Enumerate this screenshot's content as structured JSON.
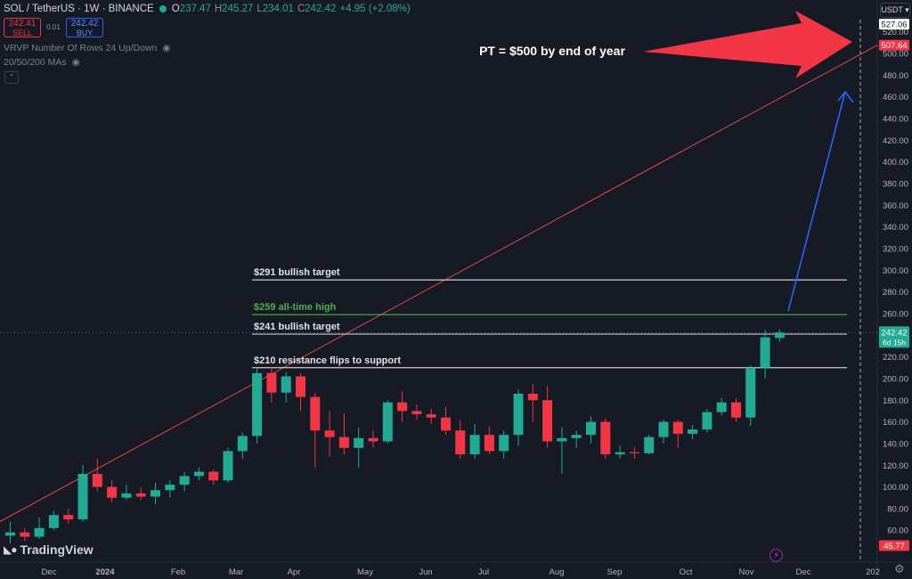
{
  "header": {
    "symbol": "SOL / TetherUS · 1W · BINANCE",
    "o_label": "O",
    "o": "237.47",
    "h_label": "H",
    "h": "245.27",
    "l_label": "L",
    "l": "234.01",
    "c_label": "C",
    "c": "242.42",
    "change": "+4.95 (+2.08%)"
  },
  "trade": {
    "sell_price": "242.41",
    "sell_label": "SELL",
    "spread": "0.01",
    "buy_price": "242.42",
    "buy_label": "BUY"
  },
  "indicators": [
    {
      "label": "VRVP Number Of Rows 24 Up/Down"
    },
    {
      "label": "20/50/200 MAs"
    }
  ],
  "quote_currency": "USDT",
  "branding": "TradingView",
  "colors": {
    "background": "#161a25",
    "up": "#22ab94",
    "down": "#f23645",
    "trendline": "#e64545",
    "green_level": "#4caf50",
    "white_level": "#c8cacf",
    "projection_arrow": "#2962ff",
    "annotation_arrow": "#f23645"
  },
  "chart_data": {
    "type": "candlestick",
    "interval": "1W",
    "ylim": [
      40,
      530
    ],
    "y_ticks": [
      60,
      80,
      100,
      120,
      140,
      160,
      180,
      200,
      220,
      240,
      260,
      280,
      300,
      320,
      340,
      360,
      380,
      400,
      420,
      440,
      460,
      480,
      500,
      520
    ],
    "x_ticks": [
      "Dec",
      "2024",
      "Feb",
      "Mar",
      "Apr",
      "May",
      "Jun",
      "Jul",
      "Aug",
      "Sep",
      "Oct",
      "Nov",
      "Dec",
      "202"
    ],
    "price_labels": {
      "top": "527.06",
      "trend": "507.64",
      "last": "242.42",
      "countdown": "6d 15h",
      "bottom": "45.77"
    },
    "candles": [
      {
        "o": 55,
        "h": 68,
        "l": 48,
        "c": 58
      },
      {
        "o": 58,
        "h": 62,
        "l": 50,
        "c": 54
      },
      {
        "o": 54,
        "h": 72,
        "l": 52,
        "c": 62
      },
      {
        "o": 62,
        "h": 78,
        "l": 60,
        "c": 74
      },
      {
        "o": 74,
        "h": 80,
        "l": 66,
        "c": 70
      },
      {
        "o": 70,
        "h": 120,
        "l": 68,
        "c": 112
      },
      {
        "o": 112,
        "h": 126,
        "l": 96,
        "c": 100
      },
      {
        "o": 100,
        "h": 106,
        "l": 86,
        "c": 90
      },
      {
        "o": 90,
        "h": 102,
        "l": 88,
        "c": 94
      },
      {
        "o": 94,
        "h": 100,
        "l": 88,
        "c": 91
      },
      {
        "o": 91,
        "h": 104,
        "l": 84,
        "c": 97
      },
      {
        "o": 97,
        "h": 106,
        "l": 90,
        "c": 102
      },
      {
        "o": 102,
        "h": 114,
        "l": 96,
        "c": 110
      },
      {
        "o": 110,
        "h": 118,
        "l": 106,
        "c": 114
      },
      {
        "o": 114,
        "h": 116,
        "l": 102,
        "c": 106
      },
      {
        "o": 106,
        "h": 136,
        "l": 104,
        "c": 133
      },
      {
        "o": 133,
        "h": 150,
        "l": 126,
        "c": 147
      },
      {
        "o": 147,
        "h": 210,
        "l": 140,
        "c": 205
      },
      {
        "o": 205,
        "h": 210,
        "l": 178,
        "c": 187
      },
      {
        "o": 187,
        "h": 206,
        "l": 178,
        "c": 202
      },
      {
        "o": 202,
        "h": 205,
        "l": 170,
        "c": 183
      },
      {
        "o": 183,
        "h": 187,
        "l": 118,
        "c": 152
      },
      {
        "o": 152,
        "h": 170,
        "l": 128,
        "c": 146
      },
      {
        "o": 146,
        "h": 168,
        "l": 130,
        "c": 136
      },
      {
        "o": 136,
        "h": 155,
        "l": 118,
        "c": 145
      },
      {
        "o": 145,
        "h": 152,
        "l": 136,
        "c": 142
      },
      {
        "o": 142,
        "h": 180,
        "l": 140,
        "c": 178
      },
      {
        "o": 178,
        "h": 188,
        "l": 160,
        "c": 170
      },
      {
        "o": 170,
        "h": 176,
        "l": 162,
        "c": 167
      },
      {
        "o": 167,
        "h": 172,
        "l": 158,
        "c": 164
      },
      {
        "o": 164,
        "h": 174,
        "l": 148,
        "c": 152
      },
      {
        "o": 152,
        "h": 162,
        "l": 126,
        "c": 130
      },
      {
        "o": 130,
        "h": 158,
        "l": 126,
        "c": 148
      },
      {
        "o": 148,
        "h": 156,
        "l": 130,
        "c": 133
      },
      {
        "o": 133,
        "h": 152,
        "l": 126,
        "c": 148
      },
      {
        "o": 148,
        "h": 190,
        "l": 138,
        "c": 186
      },
      {
        "o": 186,
        "h": 195,
        "l": 160,
        "c": 180
      },
      {
        "o": 180,
        "h": 193,
        "l": 136,
        "c": 142
      },
      {
        "o": 142,
        "h": 155,
        "l": 112,
        "c": 145
      },
      {
        "o": 145,
        "h": 152,
        "l": 136,
        "c": 148
      },
      {
        "o": 148,
        "h": 165,
        "l": 140,
        "c": 160
      },
      {
        "o": 160,
        "h": 163,
        "l": 126,
        "c": 130
      },
      {
        "o": 130,
        "h": 138,
        "l": 126,
        "c": 132
      },
      {
        "o": 132,
        "h": 137,
        "l": 126,
        "c": 131
      },
      {
        "o": 131,
        "h": 148,
        "l": 130,
        "c": 146
      },
      {
        "o": 146,
        "h": 162,
        "l": 140,
        "c": 160
      },
      {
        "o": 160,
        "h": 162,
        "l": 136,
        "c": 149
      },
      {
        "o": 149,
        "h": 157,
        "l": 144,
        "c": 153
      },
      {
        "o": 153,
        "h": 172,
        "l": 150,
        "c": 169
      },
      {
        "o": 169,
        "h": 182,
        "l": 166,
        "c": 178
      },
      {
        "o": 178,
        "h": 182,
        "l": 160,
        "c": 164
      },
      {
        "o": 164,
        "h": 212,
        "l": 156,
        "c": 210
      },
      {
        "o": 210,
        "h": 245,
        "l": 200,
        "c": 238
      },
      {
        "o": 237.47,
        "h": 245.27,
        "l": 234.01,
        "c": 242.42
      }
    ],
    "levels": [
      {
        "value": 291,
        "label": "$291 bullish target",
        "style": "white"
      },
      {
        "value": 259,
        "label": "$259 all-time high",
        "style": "green"
      },
      {
        "value": 241,
        "label": "$241 bullish target",
        "style": "white"
      },
      {
        "value": 210,
        "label": "$210 resistance flips to support",
        "style": "white"
      }
    ],
    "trendline": {
      "from": {
        "bar": 0,
        "value": 68
      },
      "to": {
        "value": 507.64
      }
    },
    "annotations": [
      {
        "text": "PT = $500 by end of year"
      }
    ]
  }
}
